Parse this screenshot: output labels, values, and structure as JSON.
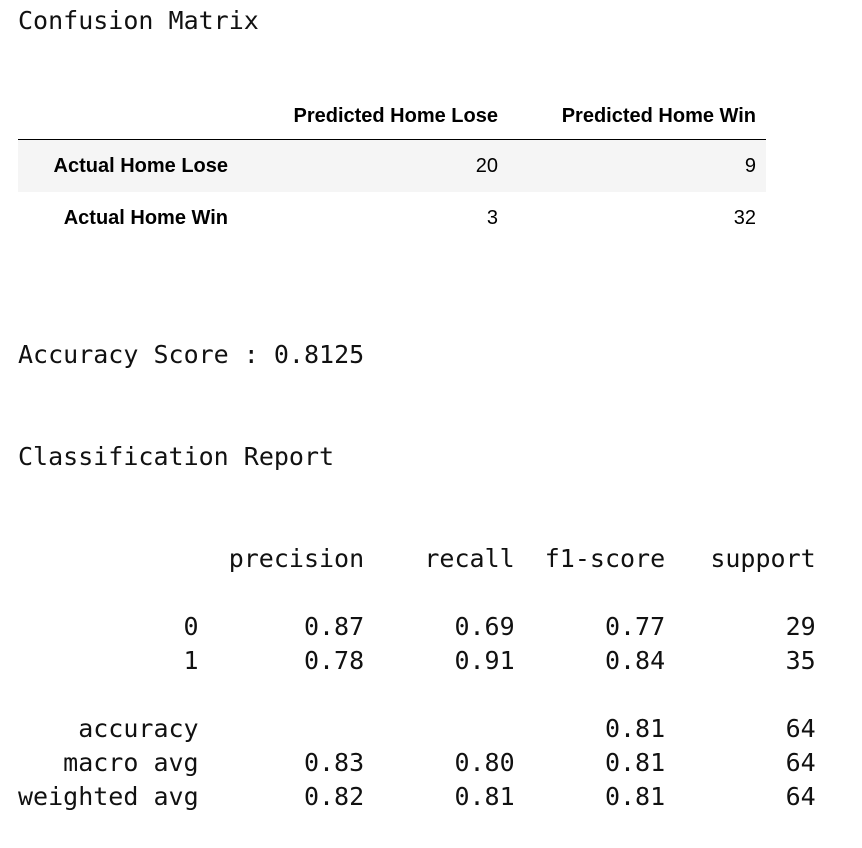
{
  "title": "Confusion Matrix",
  "confusion_table": {
    "columns": [
      "Predicted Home Lose",
      "Predicted Home Win"
    ],
    "rows": [
      {
        "label": "Actual Home Lose",
        "values": [
          20,
          9
        ]
      },
      {
        "label": "Actual Home Win",
        "values": [
          3,
          32
        ]
      }
    ]
  },
  "accuracy_line": "Accuracy Score : 0.8125",
  "report_title": "Classification Report",
  "report": {
    "columns": [
      "precision",
      "recall",
      "f1-score",
      "support"
    ],
    "rows": [
      {
        "label": "0",
        "values": [
          "0.87",
          "0.69",
          "0.77",
          "29"
        ]
      },
      {
        "label": "1",
        "values": [
          "0.78",
          "0.91",
          "0.84",
          "35"
        ]
      },
      {
        "label": "accuracy",
        "values": [
          null,
          null,
          "0.81",
          "64"
        ]
      },
      {
        "label": "macro avg",
        "values": [
          "0.83",
          "0.80",
          "0.81",
          "64"
        ]
      },
      {
        "label": "weighted avg",
        "values": [
          "0.82",
          "0.81",
          "0.81",
          "64"
        ]
      }
    ]
  }
}
